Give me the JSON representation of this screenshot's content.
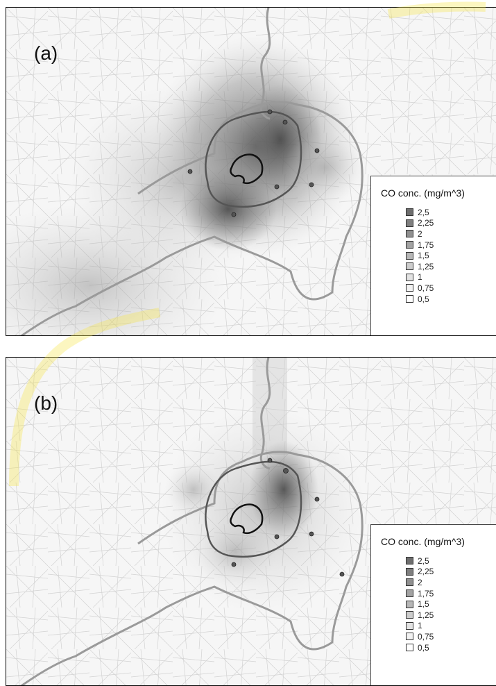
{
  "panels": [
    {
      "label": "(a)",
      "legend": {
        "title": "CO conc. (mg/m^3)",
        "items": [
          {
            "label": "2,5",
            "color": "#6e6e6e"
          },
          {
            "label": "2,25",
            "color": "#7f7f7f"
          },
          {
            "label": "2",
            "color": "#909090"
          },
          {
            "label": "1,75",
            "color": "#a3a3a3"
          },
          {
            "label": "1,5",
            "color": "#b7b7b7"
          },
          {
            "label": "1,25",
            "color": "#cdcdcd"
          },
          {
            "label": "1",
            "color": "#e3e3e3"
          },
          {
            "label": "0,75",
            "color": "#f2f2f2"
          },
          {
            "label": "0,5",
            "color": "#ffffff"
          }
        ]
      }
    },
    {
      "label": "(b)",
      "legend": {
        "title": "CO conc. (mg/m^3)",
        "items": [
          {
            "label": "2,5",
            "color": "#6e6e6e"
          },
          {
            "label": "2,25",
            "color": "#7f7f7f"
          },
          {
            "label": "2",
            "color": "#909090"
          },
          {
            "label": "1,75",
            "color": "#a3a3a3"
          },
          {
            "label": "1,5",
            "color": "#b7b7b7"
          },
          {
            "label": "1,25",
            "color": "#cdcdcd"
          },
          {
            "label": "1",
            "color": "#e3e3e3"
          },
          {
            "label": "0,75",
            "color": "#f2f2f2"
          },
          {
            "label": "0,5",
            "color": "#ffffff"
          }
        ]
      }
    }
  ]
}
